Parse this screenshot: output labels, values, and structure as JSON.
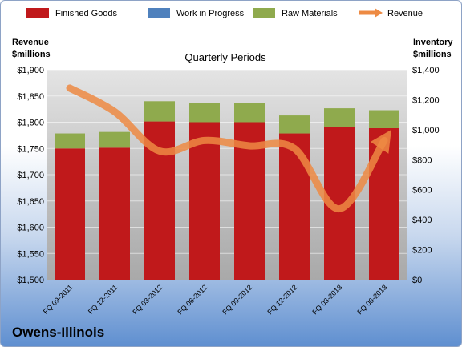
{
  "company": "Owens-Illinois",
  "chart_data": {
    "type": "bar",
    "subtitle": "Quarterly Periods",
    "left_axis_title": [
      "Revenue",
      "$millions"
    ],
    "right_axis_title": [
      "Inventory",
      "$millions"
    ],
    "categories": [
      "FQ 09-2011",
      "FQ 12-2011",
      "FQ 03-2012",
      "FQ 06-2012",
      "FQ 09-2012",
      "FQ 12-2012",
      "FQ 03-2013",
      "FQ 06-2013"
    ],
    "stacked": true,
    "series": [
      {
        "name": "Finished Goods",
        "axis": "right",
        "color": "#c0191b",
        "values": [
          875,
          880,
          1055,
          1050,
          1050,
          975,
          1020,
          1010
        ]
      },
      {
        "name": "Work in Progress",
        "axis": "right",
        "color": "#4f81bd",
        "values": [
          0,
          0,
          0,
          0,
          0,
          0,
          0,
          0
        ]
      },
      {
        "name": "Raw Materials",
        "axis": "right",
        "color": "#8faa4d",
        "values": [
          100,
          105,
          135,
          130,
          130,
          120,
          123,
          120
        ]
      },
      {
        "name": "Revenue",
        "axis": "left",
        "type": "line",
        "color": "#ed8a43",
        "values": [
          1865,
          1820,
          1745,
          1765,
          1755,
          1750,
          1635,
          1765
        ]
      }
    ],
    "left_axis": {
      "min": 1500,
      "max": 1900,
      "ticks": [
        "$1,500",
        "$1,550",
        "$1,600",
        "$1,650",
        "$1,700",
        "$1,750",
        "$1,800",
        "$1,850",
        "$1,900"
      ]
    },
    "right_axis": {
      "min": 0,
      "max": 1400,
      "ticks": [
        "$0",
        "$200",
        "$400",
        "$600",
        "$800",
        "$1,000",
        "$1,200",
        "$1,400"
      ]
    },
    "legend_position": "top",
    "grid": true
  }
}
